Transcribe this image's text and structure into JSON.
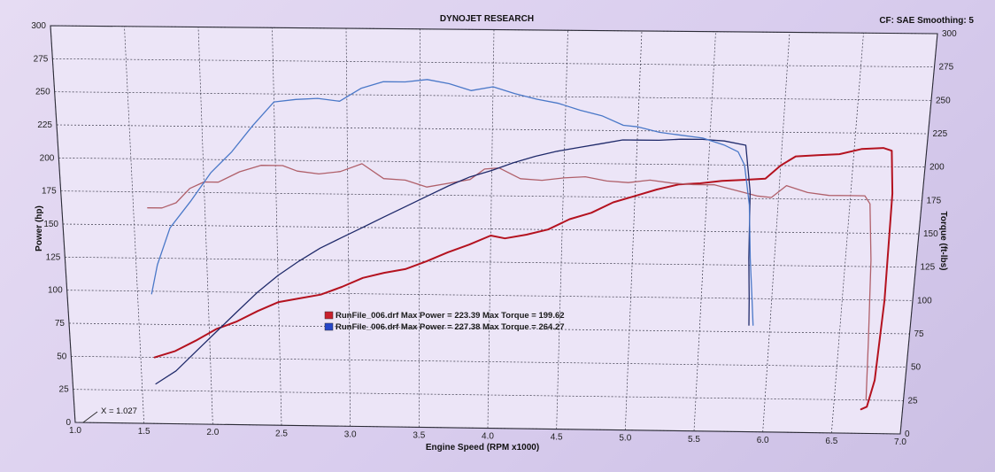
{
  "header": {
    "title": "DYNOJET RESEARCH",
    "settings": "CF: SAE  Smoothing: 5"
  },
  "cursor_readout": "X = 1.027",
  "legend": [
    {
      "label": "RunFile_006.drf Max Power = 223.39 Max Torque = 199.62",
      "color": "#c8202c"
    },
    {
      "label": "RunFile_006.drf Max Power = 227.38 Max Torque = 264.27",
      "color": "#2646c8"
    }
  ],
  "chart_data": {
    "type": "line",
    "title": "DYNOJET RESEARCH",
    "xlabel": "Engine Speed (RPM x1000)",
    "ylabel_left": "Power (hp)",
    "ylabel_right": "Torque (ft-lbs)",
    "xlim": [
      1.0,
      7.0
    ],
    "ylim_left": [
      0,
      300
    ],
    "ylim_right": [
      0,
      300
    ],
    "x_ticks": [
      "1.0",
      "1.5",
      "2.0",
      "2.5",
      "3.0",
      "3.5",
      "4.0",
      "4.5",
      "5.0",
      "5.5",
      "6.0",
      "6.5",
      "7.0"
    ],
    "y_ticks_left": [
      "0",
      "25",
      "50",
      "75",
      "100",
      "125",
      "150",
      "175",
      "200",
      "225",
      "250",
      "275",
      "300"
    ],
    "y_ticks_right": [
      "0",
      "25",
      "50",
      "75",
      "100",
      "125",
      "150",
      "175",
      "200",
      "225",
      "250",
      "275",
      "300"
    ],
    "grid": true,
    "series": [
      {
        "name": "RunFile_006.drf",
        "run": "red",
        "measure": "Power (hp)",
        "color": "#c8202c",
        "x": [
          1.6,
          1.75,
          1.9,
          2.05,
          2.2,
          2.35,
          2.5,
          2.65,
          2.8,
          2.95,
          3.1,
          3.25,
          3.4,
          3.55,
          3.7,
          3.85,
          4.0,
          4.1,
          4.25,
          4.4,
          4.55,
          4.7,
          4.85,
          5.0,
          5.15,
          5.3,
          5.45,
          5.6,
          5.75,
          5.9,
          6.0,
          6.1,
          6.25,
          6.4,
          6.55,
          6.7,
          6.76,
          6.79,
          6.8,
          6.78,
          6.74,
          6.7
        ],
        "y": [
          50,
          55,
          63,
          72,
          78,
          86,
          93,
          96,
          99,
          105,
          112,
          116,
          119,
          125,
          132,
          138,
          145,
          143,
          146,
          150,
          158,
          163,
          171,
          176,
          181,
          185,
          186,
          188,
          189,
          190,
          200,
          207,
          208,
          209,
          213,
          214,
          212,
          180,
          100,
          40,
          20,
          18
        ]
      },
      {
        "name": "RunFile_006.drf",
        "run": "red",
        "measure": "Torque (ft-lbs)",
        "color": "#c8202c",
        "x": [
          1.6,
          1.7,
          1.8,
          1.9,
          2.0,
          2.1,
          2.25,
          2.4,
          2.55,
          2.65,
          2.8,
          2.95,
          3.1,
          3.25,
          3.4,
          3.55,
          3.7,
          3.85,
          3.95,
          4.05,
          4.2,
          4.35,
          4.5,
          4.65,
          4.8,
          4.95,
          5.1,
          5.25,
          5.4,
          5.55,
          5.7,
          5.85,
          5.95,
          6.05,
          6.2,
          6.35,
          6.5,
          6.6,
          6.64,
          6.68,
          6.71,
          6.73
        ],
        "y": [
          163,
          163,
          167,
          178,
          183,
          183,
          191,
          196,
          196,
          192,
          190,
          192,
          198,
          187,
          186,
          181,
          184,
          187,
          195,
          196,
          188,
          187,
          189,
          190,
          187,
          186,
          188,
          186,
          185,
          185,
          181,
          177,
          176,
          185,
          180,
          178,
          178,
          178,
          172,
          130,
          70,
          25
        ]
      },
      {
        "name": "RunFile_006.drf",
        "run": "blue",
        "measure": "Power (hp)",
        "color": "#2646c8",
        "x": [
          1.6,
          1.75,
          1.9,
          2.05,
          2.2,
          2.35,
          2.5,
          2.65,
          2.8,
          2.95,
          3.1,
          3.25,
          3.4,
          3.55,
          3.7,
          3.85,
          4.0,
          4.15,
          4.3,
          4.45,
          4.6,
          4.75,
          4.9,
          5.0,
          5.15,
          5.3,
          5.45,
          5.6,
          5.75,
          5.8,
          5.82,
          5.84,
          5.85
        ],
        "y": [
          30,
          40,
          55,
          70,
          85,
          100,
          113,
          124,
          134,
          142,
          150,
          158,
          166,
          174,
          182,
          189,
          194,
          200,
          205,
          209,
          212,
          215,
          218,
          218,
          218,
          219,
          219,
          218,
          215,
          180,
          130,
          100,
          80
        ]
      },
      {
        "name": "RunFile_006.drf",
        "run": "blue",
        "measure": "Torque (ft-lbs)",
        "color": "#2646c8",
        "x": [
          1.6,
          1.65,
          1.75,
          1.9,
          2.05,
          2.2,
          2.35,
          2.5,
          2.65,
          2.8,
          2.95,
          3.1,
          3.25,
          3.4,
          3.55,
          3.7,
          3.85,
          4.0,
          4.15,
          4.3,
          4.45,
          4.6,
          4.75,
          4.9,
          5.0,
          5.15,
          5.3,
          5.45,
          5.6,
          5.7,
          5.75,
          5.8,
          5.83,
          5.86,
          5.88
        ],
        "y": [
          98,
          120,
          148,
          168,
          190,
          206,
          226,
          244,
          246,
          247,
          245,
          255,
          260,
          260,
          262,
          259,
          254,
          257,
          252,
          248,
          245,
          240,
          236,
          229,
          228,
          224,
          222,
          220,
          215,
          210,
          200,
          170,
          130,
          100,
          80
        ]
      }
    ]
  }
}
